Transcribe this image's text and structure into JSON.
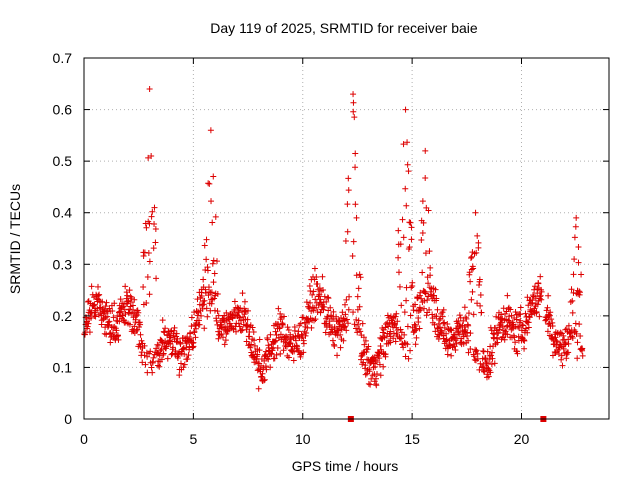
{
  "chart_data": {
    "type": "scatter",
    "title": "Day 119 of 2025, SRMTID for receiver baie",
    "xlabel": "GPS time / hours",
    "ylabel": "SRMTID / TECUs",
    "xlim": [
      0,
      24
    ],
    "ylim": [
      0,
      0.7
    ],
    "xticks": [
      0,
      5,
      10,
      15,
      20
    ],
    "yticks": [
      0,
      0.1,
      0.2,
      0.3,
      0.4,
      0.5,
      0.6,
      0.7
    ],
    "grid": true,
    "marker": "+",
    "color": "#dd0000",
    "bursts": [
      {
        "center": 3.0,
        "width": 0.3,
        "peak": 0.64
      },
      {
        "center": 5.8,
        "width": 0.3,
        "peak": 0.56
      },
      {
        "center": 12.3,
        "width": 0.35,
        "peak": 0.63
      },
      {
        "center": 14.7,
        "width": 0.35,
        "peak": 0.6
      },
      {
        "center": 15.6,
        "width": 0.25,
        "peak": 0.52
      },
      {
        "center": 17.9,
        "width": 0.3,
        "peak": 0.4
      },
      {
        "center": 22.5,
        "width": 0.25,
        "peak": 0.39
      }
    ],
    "data_gaps_hours": [
      12.2,
      21.0
    ],
    "baseline_range": [
      0.05,
      0.3
    ]
  }
}
